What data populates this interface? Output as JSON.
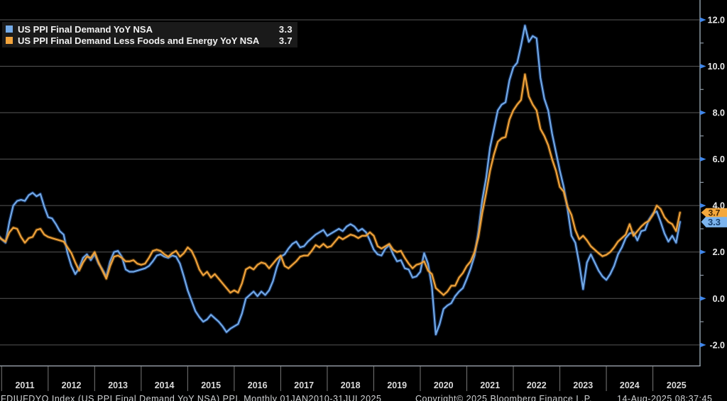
{
  "legend": {
    "series1_label": "US PPI Final Demand YoY NSA",
    "series1_value": "3.3",
    "series2_label": "US PPI Final Demand Less Foods and Energy YoY NSA",
    "series2_value": "3.7"
  },
  "footer": {
    "left": "FDIUFDYO Index (US PPI Final Demand YoY NSA) PPI. Monthly 01JAN2010-31JUL2025",
    "center": "Copyright© 2025 Bloomberg Finance L.P.",
    "right": "14-Aug-2025 08:37:45"
  },
  "colors": {
    "background": "#000000",
    "grid": "#575757",
    "axis_line": "#8e9aa6",
    "bottom_line": "#a9b2bb",
    "year_separator": "#6e6e6e",
    "tick_arrow": "#3f86ea",
    "axis_text": "#e8e8e8",
    "year_text": "#dadada",
    "series1": "#74abe8",
    "series1_glow": "#2d66c4",
    "series2": "#f2a43c",
    "series2_glow": "#b06f18",
    "tag1_bg": "#7cb4ee",
    "tag1_text": "#16406e",
    "tag2_bg": "#f5a83c",
    "tag2_text": "#402300"
  },
  "chart_data": {
    "type": "line",
    "title": "",
    "xlabel": "",
    "ylabel": "",
    "x_start": {
      "year": 2010,
      "month": 11
    },
    "x_end": {
      "year": 2025,
      "month": 7
    },
    "x_year_labels": [
      "2011",
      "2012",
      "2013",
      "2014",
      "2015",
      "2016",
      "2017",
      "2018",
      "2019",
      "2020",
      "2021",
      "2022",
      "2023",
      "2024",
      "2025"
    ],
    "y_major_ticks": [
      12.0,
      10.0,
      8.0,
      6.0,
      4.0,
      2.0,
      0.0,
      -2.0
    ],
    "y_major_labels": [
      "12.0",
      "10.0",
      "8.0",
      "6.0",
      "4.0",
      "2.0",
      "0.0",
      "-2.0"
    ],
    "y_minor_ticks": [
      11.0,
      9.0,
      7.0,
      5.0,
      3.0,
      1.0,
      -1.0
    ],
    "ylim": [
      -2.9,
      12.85
    ],
    "grid": true,
    "legend_position": "top-left",
    "last_value_tags": [
      {
        "series": 2,
        "text": "3.7",
        "value": 3.7
      },
      {
        "series": 1,
        "text": "3.3",
        "value": 3.3
      }
    ],
    "series": [
      {
        "name": "US PPI Final Demand YoY NSA",
        "values": [
          2.75,
          2.55,
          2.4,
          3.3,
          4.0,
          4.2,
          4.25,
          4.2,
          4.45,
          4.55,
          4.4,
          4.5,
          3.95,
          3.5,
          3.45,
          3.2,
          2.9,
          2.75,
          1.95,
          1.4,
          1.05,
          1.3,
          1.75,
          1.9,
          1.65,
          1.9,
          1.5,
          1.25,
          0.95,
          1.6,
          2.0,
          2.05,
          1.8,
          1.25,
          1.15,
          1.15,
          1.2,
          1.25,
          1.3,
          1.4,
          1.6,
          1.85,
          1.9,
          1.8,
          1.75,
          1.85,
          1.8,
          1.5,
          0.95,
          0.35,
          -0.1,
          -0.55,
          -0.8,
          -1.0,
          -0.9,
          -0.7,
          -0.85,
          -1.0,
          -1.2,
          -1.45,
          -1.3,
          -1.2,
          -1.1,
          -0.65,
          0.0,
          0.15,
          0.3,
          0.1,
          0.3,
          0.15,
          0.35,
          0.75,
          1.35,
          1.8,
          1.9,
          2.15,
          2.35,
          2.45,
          2.2,
          2.25,
          2.45,
          2.6,
          2.75,
          2.85,
          2.95,
          2.7,
          2.8,
          2.9,
          3.0,
          2.9,
          3.1,
          3.2,
          3.1,
          2.9,
          3.0,
          2.85,
          2.5,
          2.1,
          1.9,
          1.85,
          2.15,
          2.3,
          1.9,
          1.6,
          1.65,
          1.3,
          1.25,
          0.9,
          0.95,
          1.15,
          1.95,
          1.5,
          0.5,
          -1.55,
          -1.1,
          -0.45,
          -0.3,
          -0.2,
          0.1,
          0.3,
          0.45,
          0.85,
          1.3,
          1.85,
          2.9,
          4.25,
          5.2,
          6.5,
          7.3,
          8.1,
          8.35,
          8.45,
          9.4,
          9.95,
          10.15,
          10.9,
          11.75,
          11.05,
          11.3,
          11.2,
          9.5,
          8.6,
          8.1,
          7.1,
          6.3,
          5.5,
          4.8,
          3.85,
          2.7,
          2.4,
          1.5,
          0.4,
          1.55,
          1.9,
          1.55,
          1.2,
          0.95,
          0.8,
          1.05,
          1.4,
          1.9,
          2.2,
          2.6,
          2.8,
          2.85,
          2.5,
          2.9,
          2.95,
          3.4,
          3.65,
          3.75,
          3.3,
          2.8,
          2.45,
          2.7,
          2.4,
          3.3
        ]
      },
      {
        "name": "US PPI Final Demand Less Foods and Energy YoY NSA",
        "values": [
          2.7,
          2.55,
          2.45,
          2.85,
          3.05,
          3.0,
          2.65,
          2.4,
          2.6,
          2.65,
          2.95,
          3.0,
          2.75,
          2.65,
          2.6,
          2.55,
          2.5,
          2.45,
          2.2,
          1.95,
          1.55,
          1.2,
          1.55,
          1.8,
          1.75,
          2.0,
          1.55,
          1.2,
          0.85,
          1.4,
          1.8,
          1.85,
          1.75,
          1.6,
          1.6,
          1.65,
          1.5,
          1.45,
          1.5,
          1.75,
          2.05,
          2.1,
          2.05,
          1.9,
          1.8,
          1.95,
          2.05,
          1.8,
          1.95,
          2.2,
          2.05,
          1.7,
          1.25,
          1.0,
          1.15,
          0.9,
          1.05,
          0.85,
          0.65,
          0.45,
          0.25,
          0.35,
          0.25,
          0.65,
          1.25,
          1.35,
          1.25,
          1.45,
          1.55,
          1.5,
          1.3,
          1.5,
          1.7,
          1.85,
          1.4,
          1.3,
          1.45,
          1.6,
          1.8,
          1.85,
          1.85,
          2.05,
          2.3,
          2.2,
          2.35,
          2.2,
          2.25,
          2.45,
          2.65,
          2.55,
          2.65,
          2.75,
          2.7,
          2.6,
          2.7,
          2.7,
          2.85,
          2.7,
          2.25,
          2.15,
          2.25,
          2.35,
          2.1,
          2.0,
          2.05,
          1.75,
          1.5,
          1.3,
          1.45,
          1.5,
          1.6,
          1.2,
          1.05,
          0.45,
          0.3,
          0.15,
          0.3,
          0.55,
          0.55,
          0.9,
          1.1,
          1.4,
          1.6,
          2.0,
          2.65,
          3.7,
          4.55,
          5.5,
          6.2,
          6.75,
          6.9,
          6.95,
          7.7,
          8.1,
          8.35,
          8.55,
          9.65,
          8.7,
          8.35,
          8.1,
          7.3,
          7.0,
          6.6,
          6.0,
          5.5,
          4.8,
          4.6,
          3.95,
          3.6,
          2.95,
          2.55,
          2.7,
          2.5,
          2.25,
          2.1,
          1.95,
          1.82,
          1.88,
          2.0,
          2.2,
          2.45,
          2.6,
          2.75,
          3.2,
          2.7,
          2.9,
          3.1,
          3.25,
          3.35,
          3.6,
          4.0,
          3.85,
          3.5,
          3.3,
          3.2,
          2.9,
          3.7
        ]
      }
    ]
  }
}
